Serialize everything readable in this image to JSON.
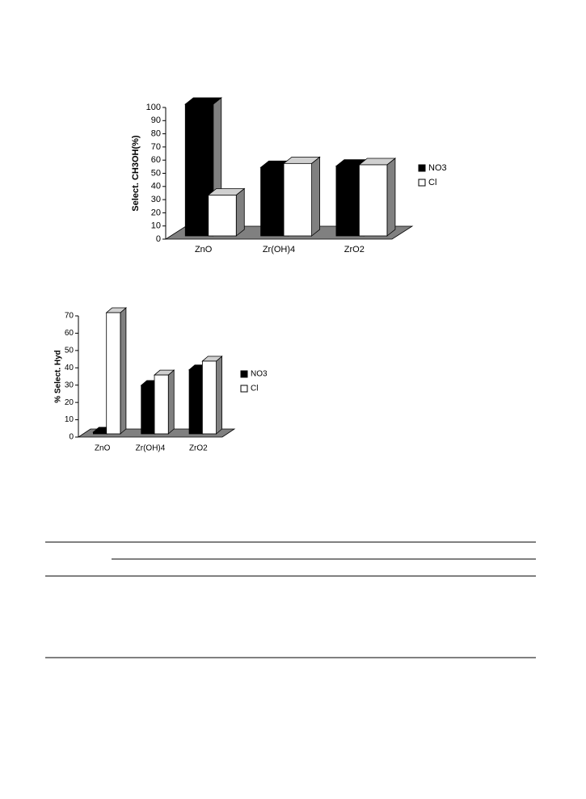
{
  "chart_data": [
    {
      "type": "bar3d",
      "y_label": "Select. CH3OH(%)",
      "categories": [
        "ZnO",
        "Zr(OH)4",
        "ZrO2"
      ],
      "series": [
        {
          "name": "NO3",
          "color": "#000000",
          "values": [
            100,
            52,
            53
          ]
        },
        {
          "name": "Cl",
          "color": "#ffffff",
          "values": [
            31,
            55,
            54
          ]
        }
      ],
      "ylim": [
        0,
        100
      ],
      "yticks": [
        0,
        10,
        20,
        30,
        40,
        50,
        60,
        70,
        80,
        90,
        100
      ],
      "legend": "right"
    },
    {
      "type": "bar3d",
      "y_label": "% Select. Hyd",
      "categories": [
        "ZnO",
        "Zr(OH)4",
        "ZrO2"
      ],
      "series": [
        {
          "name": "NO3",
          "color": "#000000",
          "values": [
            1,
            28,
            37
          ]
        },
        {
          "name": "Cl",
          "color": "#ffffff",
          "values": [
            70,
            34,
            42
          ]
        }
      ],
      "ylim": [
        0,
        70
      ],
      "yticks": [
        0,
        10,
        20,
        30,
        40,
        50,
        60,
        70
      ],
      "legend": "right"
    }
  ]
}
